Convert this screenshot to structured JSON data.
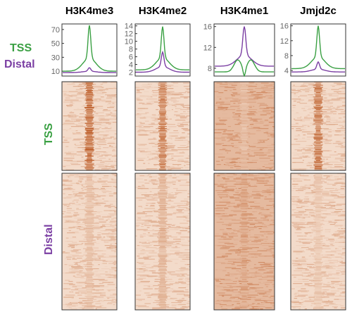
{
  "legend": {
    "tss": "TSS",
    "distal": "Distal"
  },
  "colors": {
    "tss": "#3aa043",
    "distal": "#7b3fa3",
    "heat_low": "#fbefe3",
    "heat_high": "#c0581a"
  },
  "row_labels": {
    "tss": "TSS",
    "distal": "Distal"
  },
  "chart_data": [
    {
      "type": "line",
      "title": "H3K4me3",
      "yticks": [
        10,
        30,
        50,
        70
      ],
      "ylim": [
        3,
        78
      ],
      "series": [
        {
          "name": "TSS",
          "peak": 76,
          "base": 10,
          "shape": "peak"
        },
        {
          "name": "Distal",
          "peak": 15,
          "base": 8,
          "shape": "peak"
        }
      ],
      "heatmap": {
        "tss_intensity": 0.95,
        "distal_intensity": 0.35,
        "background": 0.12
      }
    },
    {
      "type": "line",
      "title": "H3K4me2",
      "yticks": [
        2,
        4,
        6,
        8,
        10,
        12,
        14
      ],
      "ylim": [
        1,
        14.5
      ],
      "series": [
        {
          "name": "TSS",
          "peak": 13.8,
          "base": 2.6,
          "shape": "peak"
        },
        {
          "name": "Distal",
          "peak": 7.2,
          "base": 2.0,
          "shape": "peak"
        }
      ],
      "heatmap": {
        "tss_intensity": 0.8,
        "distal_intensity": 0.45,
        "background": 0.12
      }
    },
    {
      "type": "line",
      "title": "H3K4me1",
      "yticks": [
        8,
        12,
        16
      ],
      "ylim": [
        6.5,
        16.5
      ],
      "series": [
        {
          "name": "Distal",
          "peak": 16,
          "base": 8.4,
          "shape": "peak"
        },
        {
          "name": "TSS",
          "peak": 9.6,
          "base": 7.3,
          "shape": "dip"
        }
      ],
      "heatmap": {
        "tss_intensity": 0.35,
        "distal_intensity": 0.55,
        "background": 0.32
      }
    },
    {
      "type": "line",
      "title": "Jmjd2c",
      "yticks": [
        4,
        8,
        12,
        16
      ],
      "ylim": [
        2.5,
        16.5
      ],
      "series": [
        {
          "name": "TSS",
          "peak": 16,
          "base": 4.5,
          "shape": "peak"
        },
        {
          "name": "Distal",
          "peak": 6.3,
          "base": 3.6,
          "shape": "peak"
        }
      ],
      "heatmap": {
        "tss_intensity": 0.85,
        "distal_intensity": 0.3,
        "background": 0.12
      }
    }
  ]
}
